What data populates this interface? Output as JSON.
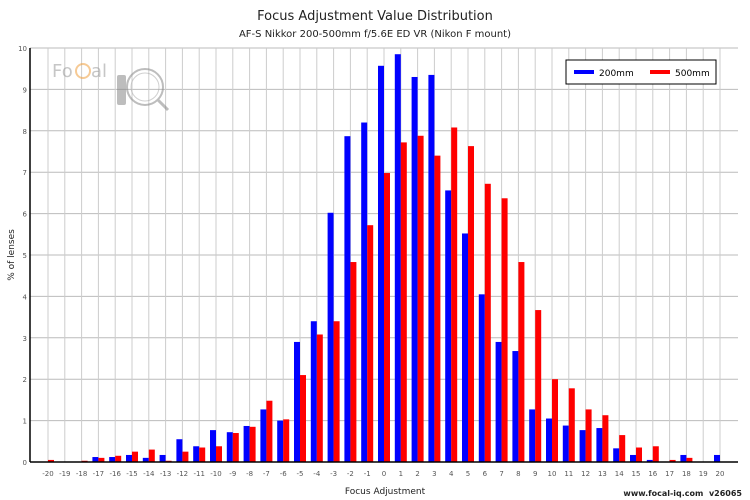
{
  "chart_data": {
    "type": "bar",
    "title": "Focus Adjustment Value Distribution",
    "subtitle": "AF-S Nikkor 200-500mm f/5.6E ED VR (Nikon F mount)",
    "xlabel": "Focus Adjustment",
    "ylabel": "% of lenses",
    "ylim": [
      0,
      10
    ],
    "yticks": [
      0,
      1,
      2,
      3,
      4,
      5,
      6,
      7,
      8,
      9,
      10
    ],
    "grid": true,
    "legend_position": "top-right",
    "categories": [
      -20,
      -19,
      -18,
      -17,
      -16,
      -15,
      -14,
      -13,
      -12,
      -11,
      -10,
      -9,
      -8,
      -7,
      -6,
      -5,
      -4,
      -3,
      -2,
      -1,
      0,
      1,
      2,
      3,
      4,
      5,
      6,
      7,
      8,
      9,
      10,
      11,
      12,
      13,
      14,
      15,
      16,
      17,
      18,
      19,
      20
    ],
    "series": [
      {
        "name": "200mm",
        "color": "#0000ff",
        "values": [
          0,
          0,
          0,
          0.12,
          0.12,
          0.17,
          0.1,
          0.17,
          0.55,
          0.38,
          0.77,
          0.72,
          0.87,
          1.27,
          1.0,
          2.9,
          3.4,
          6.02,
          7.87,
          8.2,
          9.57,
          9.85,
          9.3,
          9.35,
          6.56,
          5.52,
          4.05,
          2.9,
          2.68,
          1.27,
          1.05,
          0.88,
          0.77,
          0.82,
          0.33,
          0.17,
          0.05,
          0,
          0.17,
          0,
          0.17
        ]
      },
      {
        "name": "500mm",
        "color": "#ff0000",
        "values": [
          0.05,
          0,
          0.03,
          0.1,
          0.15,
          0.25,
          0.3,
          0.03,
          0.25,
          0.35,
          0.38,
          0.7,
          0.85,
          1.48,
          1.03,
          2.1,
          3.08,
          3.4,
          4.83,
          5.72,
          6.98,
          7.72,
          7.88,
          7.4,
          8.08,
          7.63,
          6.72,
          6.37,
          4.83,
          3.67,
          2.0,
          1.78,
          1.27,
          1.13,
          0.65,
          0.35,
          0.38,
          0.05,
          0.1,
          0,
          0
        ]
      }
    ]
  },
  "watermark": {
    "logo_text": "FoCal iQ",
    "footer": "www.focal-iq.com  v26065"
  }
}
